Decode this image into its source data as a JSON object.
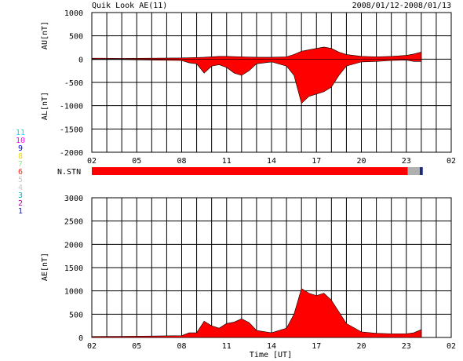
{
  "header": {
    "title": "Quik Look AE(11)",
    "date_range": "2008/01/12-2008/01/13"
  },
  "legend": [
    {
      "label": "11",
      "color": "#00e0e0"
    },
    {
      "label": "10",
      "color": "#ff00ff"
    },
    {
      "label": "9",
      "color": "#0000d0"
    },
    {
      "label": "8",
      "color": "#e8d800"
    },
    {
      "label": "7",
      "color": "#90e890"
    },
    {
      "label": "6",
      "color": "#ff2020"
    },
    {
      "label": "5",
      "color": "#c8c8c8"
    },
    {
      "label": "4",
      "color": "#c8c8c8"
    },
    {
      "label": "3",
      "color": "#00b8b8"
    },
    {
      "label": "2",
      "color": "#b000b0"
    },
    {
      "label": "1",
      "color": "#2020a0"
    }
  ],
  "colors": {
    "fill": "#ff0000",
    "late_fill": "#b0b0b0",
    "recent_fill": "#1a2a80",
    "grid": "#000000"
  },
  "chart_data": [
    {
      "type": "area",
      "title": "",
      "ylabel_top": "AU[nT]",
      "ylabel_bottom": "AL[nT]",
      "ylim": [
        -2000,
        1000
      ],
      "yticks": [
        1000,
        500,
        0,
        -500,
        -1000,
        -1500,
        -2000
      ],
      "xlim": [
        2,
        26
      ],
      "xtick_labels": [
        "02",
        "05",
        "08",
        "11",
        "14",
        "17",
        "20",
        "23",
        "02"
      ],
      "series": [
        {
          "name": "AU",
          "x": [
            2,
            4,
            6,
            8,
            9.5,
            10.5,
            11,
            12,
            13,
            14,
            15,
            15.5,
            16,
            16.5,
            17,
            17.5,
            18,
            18.5,
            19,
            20,
            21,
            22,
            23,
            23.5,
            24
          ],
          "y": [
            20,
            15,
            20,
            25,
            40,
            60,
            60,
            50,
            40,
            40,
            50,
            100,
            170,
            200,
            230,
            260,
            230,
            150,
            100,
            60,
            50,
            60,
            80,
            110,
            150
          ]
        },
        {
          "name": "AL",
          "x": [
            2,
            4,
            6,
            8,
            8.5,
            9,
            9.5,
            10,
            10.5,
            11,
            11.5,
            12,
            12.5,
            13,
            14,
            15,
            15.5,
            16,
            16.5,
            17,
            17.5,
            18,
            18.5,
            19,
            20,
            21,
            22,
            23,
            23.5,
            24
          ],
          "y": [
            -10,
            -10,
            -20,
            -30,
            -80,
            -100,
            -300,
            -150,
            -120,
            -180,
            -300,
            -350,
            -250,
            -100,
            -60,
            -150,
            -350,
            -950,
            -800,
            -750,
            -700,
            -600,
            -350,
            -150,
            -60,
            -50,
            -30,
            -20,
            -50,
            -50
          ]
        }
      ]
    },
    {
      "type": "area",
      "title": "",
      "ylabel": "AE[nT]",
      "xlabel": "Time [UT]",
      "ylim": [
        0,
        3000
      ],
      "yticks": [
        3000,
        2500,
        2000,
        1500,
        1000,
        500,
        0
      ],
      "xlim": [
        2,
        26
      ],
      "xtick_labels": [
        "02",
        "05",
        "08",
        "11",
        "14",
        "17",
        "20",
        "23",
        "02"
      ],
      "series": [
        {
          "name": "AE",
          "x": [
            2,
            4,
            6,
            8,
            8.5,
            9,
            9.5,
            10,
            10.5,
            11,
            11.5,
            12,
            12.5,
            13,
            14,
            15,
            15.5,
            16,
            16.5,
            17,
            17.5,
            18,
            18.5,
            19,
            20,
            21,
            22,
            23,
            23.5,
            24
          ],
          "y": [
            20,
            25,
            30,
            40,
            100,
            100,
            350,
            250,
            200,
            300,
            330,
            400,
            320,
            150,
            100,
            200,
            500,
            1050,
            950,
            900,
            950,
            800,
            550,
            300,
            120,
            90,
            80,
            80,
            100,
            170
          ]
        }
      ]
    },
    {
      "type": "bar",
      "title": "",
      "ylabel": "N.STN",
      "xlim": [
        2,
        26
      ],
      "segments": [
        {
          "x_start": 2,
          "x_end": 23.1,
          "stations": 6
        },
        {
          "x_start": 23.1,
          "x_end": 23.9,
          "stations": 5
        },
        {
          "x_start": 23.9,
          "x_end": 24.1,
          "stations": 1
        }
      ]
    }
  ]
}
